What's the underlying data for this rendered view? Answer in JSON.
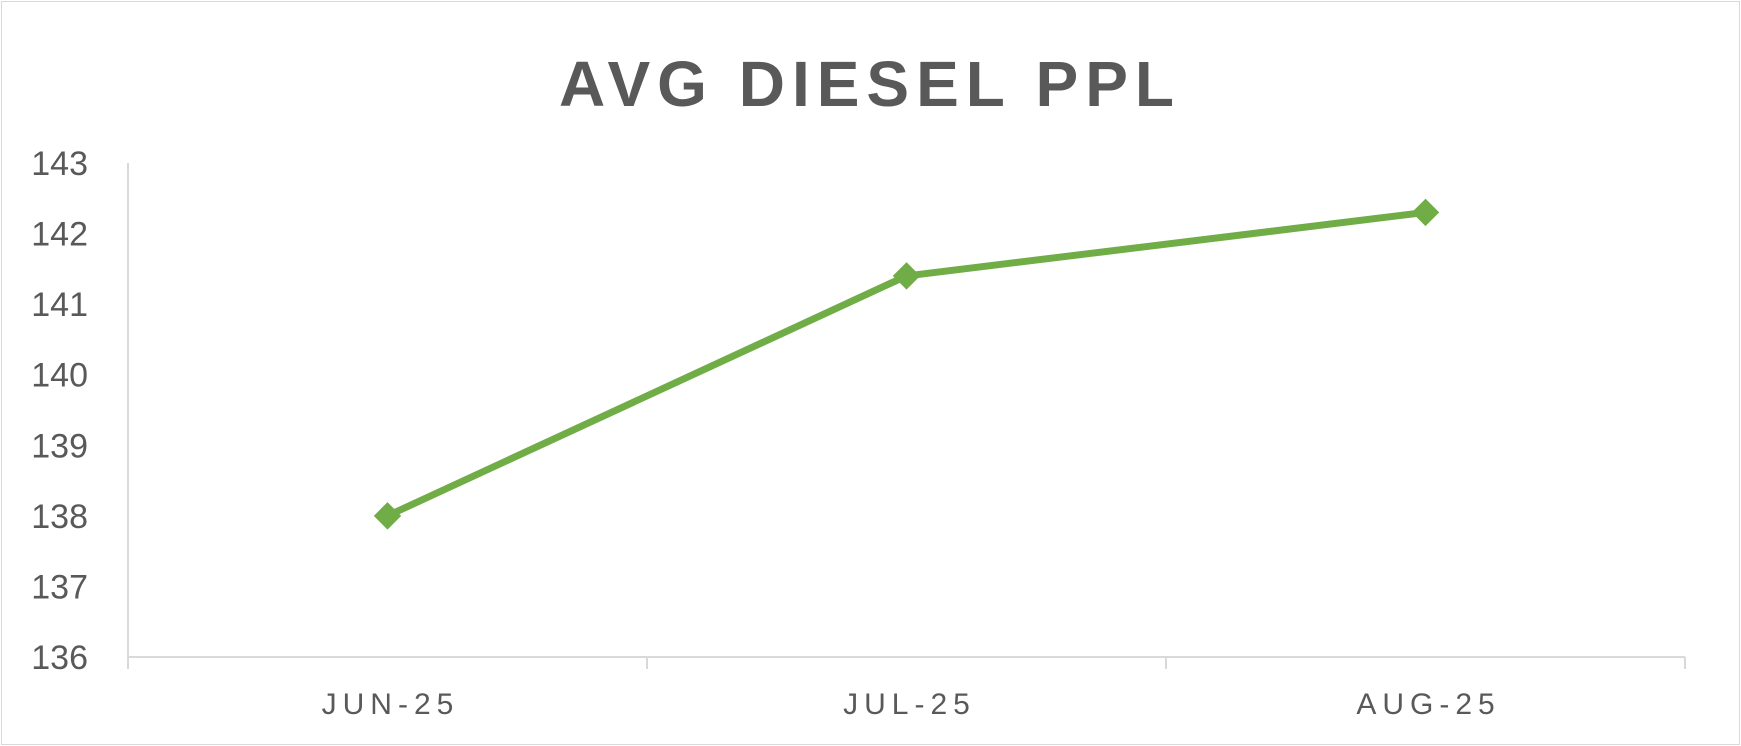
{
  "chart_data": {
    "type": "line",
    "title": "AVG DIESEL PPL",
    "xlabel": "",
    "ylabel": "",
    "categories": [
      "JUN-25",
      "JUL-25",
      "AUG-25"
    ],
    "series": [
      {
        "values": [
          138.0,
          141.4,
          142.3
        ],
        "color": "#70ad47",
        "marker": "diamond"
      }
    ],
    "ylim": [
      136,
      143
    ],
    "yticks": [
      "136",
      "137",
      "138",
      "139",
      "140",
      "141",
      "142",
      "143"
    ],
    "grid": false,
    "legend": "none"
  }
}
